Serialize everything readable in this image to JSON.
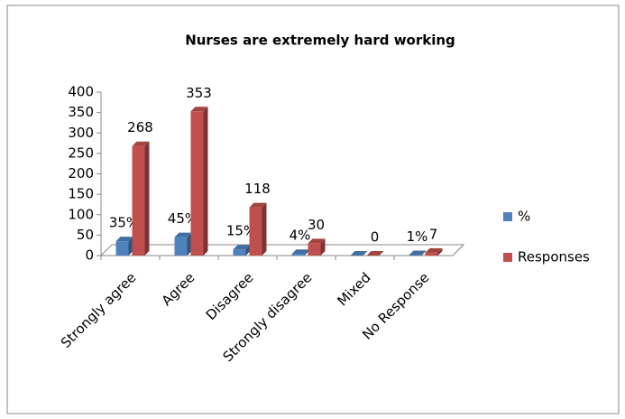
{
  "chart_data": {
    "type": "bar",
    "title": "Nurses are extremely hard working",
    "categories": [
      "Strongly agree",
      "Agree",
      "Disagree",
      "Strongly disagree",
      "Mixed",
      "No Response"
    ],
    "series": [
      {
        "name": "%",
        "color": "#4f81bd",
        "values": [
          35,
          45,
          15,
          4,
          0,
          1
        ],
        "value_labels": [
          "35%",
          "45%",
          "15%",
          "4%",
          null,
          "1%"
        ]
      },
      {
        "name": "Responses",
        "color": "#c0504d",
        "values": [
          268,
          353,
          118,
          30,
          0,
          7
        ]
      }
    ],
    "ylim": [
      0,
      400
    ],
    "yticks": [
      0,
      50,
      100,
      150,
      200,
      250,
      300,
      350,
      400
    ],
    "grid": false,
    "legend": "right"
  }
}
